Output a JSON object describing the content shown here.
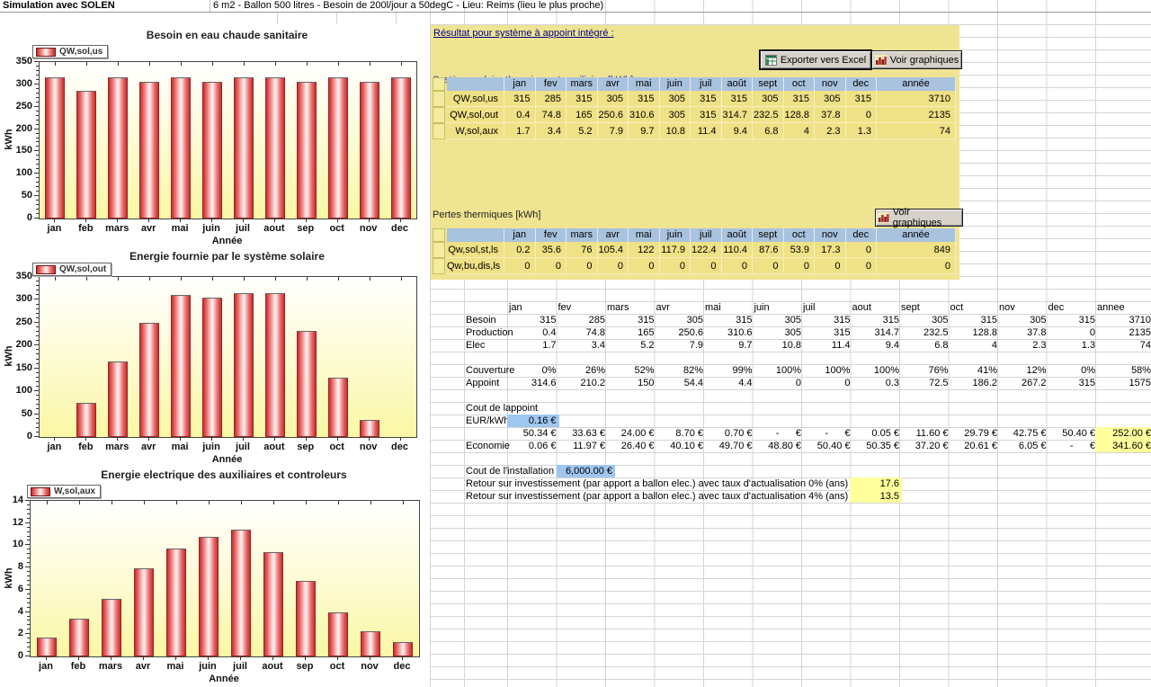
{
  "header": {
    "title": "Simulation avec SOLEN",
    "subtitle": "6 m2 - Ballon 500 litres - Besoin de 200l/jour a 50degC - Lieu: Reims (lieu le plus proche)"
  },
  "chart_data": [
    {
      "type": "bar",
      "title": "Besoin en eau chaude sanitaire",
      "legend": "QW,sol,us",
      "xlabel": "Année",
      "ylabel": "kWh",
      "ylim": [
        0,
        350
      ],
      "ytick": 50,
      "categories": [
        "jan",
        "feb",
        "mars",
        "avr",
        "mai",
        "juin",
        "juil",
        "aout",
        "sep",
        "oct",
        "nov",
        "dec"
      ],
      "values": [
        315,
        285,
        315,
        305,
        315,
        305,
        315,
        315,
        305,
        315,
        305,
        315
      ]
    },
    {
      "type": "bar",
      "title": "Energie fournie par le système solaire",
      "legend": "QW,sol,out",
      "xlabel": "Année",
      "ylabel": "kWh",
      "ylim": [
        0,
        350
      ],
      "ytick": 50,
      "categories": [
        "jan",
        "feb",
        "mars",
        "avr",
        "mai",
        "juin",
        "juil",
        "aout",
        "sep",
        "oct",
        "nov",
        "dec"
      ],
      "values": [
        0.4,
        74.8,
        165,
        250.6,
        310.6,
        305,
        315,
        314.7,
        232.5,
        128.8,
        37.8,
        0
      ]
    },
    {
      "type": "bar",
      "title": "Energie electrique des auxiliaires et controleurs",
      "legend": "W,sol,aux",
      "xlabel": "Année",
      "ylabel": "kWh",
      "ylim": [
        0,
        14
      ],
      "ytick": 2,
      "categories": [
        "jan",
        "feb",
        "mars",
        "avr",
        "mai",
        "juin",
        "juil",
        "aout",
        "sep",
        "oct",
        "nov",
        "dec"
      ],
      "values": [
        1.7,
        3.4,
        5.2,
        7.9,
        9.7,
        10.8,
        11.4,
        9.4,
        6.8,
        4,
        2.3,
        1.3
      ]
    }
  ],
  "panel": {
    "result_link": "Résultat pour système à appoint intégré :",
    "section1_title": "Système solaire thermique et auxiliaire  [kWh]",
    "export_label": "Exporter vers Excel",
    "graph_label": "Voir graphiques",
    "section2_title": "Pertes thermiques [kWh]",
    "table1": {
      "col_headers": [
        "jan",
        "fev",
        "mars",
        "avr",
        "mai",
        "juin",
        "juil",
        "août",
        "sept",
        "oct",
        "nov",
        "dec",
        "année"
      ],
      "rows": [
        {
          "label": "QW,sol,us",
          "values": [
            "315",
            "285",
            "315",
            "305",
            "315",
            "305",
            "315",
            "315",
            "305",
            "315",
            "305",
            "315",
            "3710"
          ]
        },
        {
          "label": "QW,sol,out",
          "values": [
            "0.4",
            "74.8",
            "165",
            "250.6",
            "310.6",
            "305",
            "315",
            "314.7",
            "232.5",
            "128.8",
            "37.8",
            "0",
            "2135"
          ]
        },
        {
          "label": "W,sol,aux",
          "values": [
            "1.7",
            "3.4",
            "5.2",
            "7.9",
            "9.7",
            "10.8",
            "11.4",
            "9.4",
            "6.8",
            "4",
            "2.3",
            "1.3",
            "74"
          ]
        }
      ]
    },
    "table2": {
      "col_headers": [
        "jan",
        "fev",
        "mars",
        "avr",
        "mai",
        "juin",
        "juil",
        "août",
        "sept",
        "oct",
        "nov",
        "dec",
        "année"
      ],
      "rows": [
        {
          "label": "Qw,sol,st,ls",
          "values": [
            "0.2",
            "35.6",
            "76",
            "105.4",
            "122",
            "117.9",
            "122.4",
            "110.4",
            "87.6",
            "53.9",
            "17.3",
            "0",
            "849"
          ]
        },
        {
          "label": "Qw,bu,dis,ls",
          "values": [
            "0",
            "0",
            "0",
            "0",
            "0",
            "0",
            "0",
            "0",
            "0",
            "0",
            "0",
            "0",
            "0"
          ]
        }
      ]
    }
  },
  "sheet": {
    "col_headers": [
      "jan",
      "fev",
      "mars",
      "avr",
      "mai",
      "juin",
      "juil",
      "aout",
      "sept",
      "oct",
      "nov",
      "dec",
      "annee"
    ],
    "rows": [
      {
        "label": "Besoin",
        "values": [
          "315",
          "285",
          "315",
          "305",
          "315",
          "305",
          "315",
          "315",
          "305",
          "315",
          "305",
          "315",
          "3710"
        ]
      },
      {
        "label": "Production",
        "values": [
          "0.4",
          "74.8",
          "165",
          "250.6",
          "310.6",
          "305",
          "315",
          "314.7",
          "232.5",
          "128.8",
          "37.8",
          "0",
          "2135"
        ]
      },
      {
        "label": "Elec",
        "values": [
          "1.7",
          "3.4",
          "5.2",
          "7.9",
          "9.7",
          "10.8",
          "11.4",
          "9.4",
          "6.8",
          "4",
          "2.3",
          "1.3",
          "74"
        ]
      },
      {
        "label": "",
        "values": []
      },
      {
        "label": "Couverture",
        "values": [
          "0%",
          "26%",
          "52%",
          "82%",
          "99%",
          "100%",
          "100%",
          "100%",
          "76%",
          "41%",
          "12%",
          "0%",
          "58%"
        ]
      },
      {
        "label": "Appoint",
        "values": [
          "314.6",
          "210.2",
          "150",
          "54.4",
          "4.4",
          "0",
          "0",
          "0.3",
          "72.5",
          "186.2",
          "267.2",
          "315",
          "1575"
        ]
      }
    ],
    "cost_section": {
      "title": "Cout de lappoint",
      "rate_label": "EUR/kWh",
      "rate_value": "0.16 €",
      "cost_row": [
        "50.34 €",
        "33.63 €",
        "24.00 €",
        "8.70 €",
        "0.70 €",
        "-      €",
        "-      €",
        "0.05 €",
        "11.60 €",
        "29.79 €",
        "42.75 €",
        "50.40 €",
        "252.00 €"
      ],
      "economy_label": "Economie",
      "economy_row": [
        "0.06 €",
        "11.97 €",
        "26.40 €",
        "40.10 €",
        "49.70 €",
        "48.80 €",
        "50.40 €",
        "50.35 €",
        "37.20 €",
        "20.61 €",
        "6.05 €",
        "-      €",
        "341.60 €"
      ]
    },
    "install": {
      "label": "Cout de l'installation",
      "value": "6,000.00 €"
    },
    "roi": [
      {
        "label": "Retour sur investissement (par apport a ballon elec.) avec taux d'actualisation 0% (ans)",
        "value": "17.6"
      },
      {
        "label": "Retour sur investissement (par apport a ballon elec.) avec taux d'actualisation 4% (ans)",
        "value": "13.5"
      }
    ]
  }
}
